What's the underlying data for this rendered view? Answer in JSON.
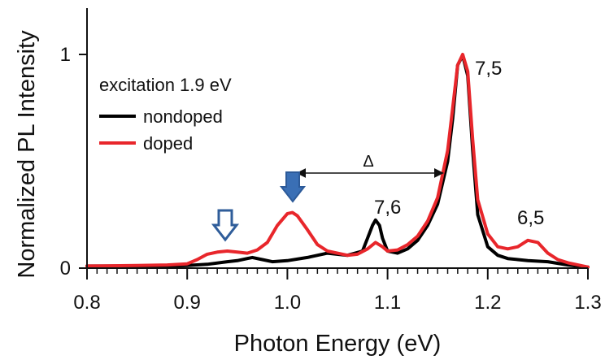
{
  "chart_data": {
    "type": "line",
    "xlabel": "Photon Energy (eV)",
    "ylabel": "Normalized PL Intensity",
    "xlim": [
      0.8,
      1.3
    ],
    "ylim": [
      0,
      1.2
    ],
    "x_ticks": [
      "0.8",
      "0.9",
      "1.0",
      "1.1",
      "1.2",
      "1.3"
    ],
    "y_ticks": [
      "0",
      "1"
    ],
    "grid": false,
    "legend": {
      "title": "excitation 1.9 eV",
      "placement": "top-left",
      "entries": [
        {
          "label": "nondoped",
          "color": "#000000"
        },
        {
          "label": "doped",
          "color": "#e8262b"
        }
      ]
    },
    "series": [
      {
        "name": "nondoped",
        "color": "#000000",
        "x": [
          0.8,
          0.85,
          0.88,
          0.9,
          0.92,
          0.94,
          0.95,
          0.96,
          0.965,
          0.975,
          0.985,
          1.0,
          1.02,
          1.04,
          1.06,
          1.075,
          1.08,
          1.085,
          1.088,
          1.092,
          1.095,
          1.1,
          1.11,
          1.12,
          1.13,
          1.14,
          1.15,
          1.16,
          1.165,
          1.17,
          1.175,
          1.18,
          1.185,
          1.19,
          1.2,
          1.21,
          1.22,
          1.23,
          1.24,
          1.26,
          1.28,
          1.3
        ],
        "y": [
          0.01,
          0.01,
          0.01,
          0.012,
          0.018,
          0.03,
          0.035,
          0.045,
          0.05,
          0.04,
          0.03,
          0.035,
          0.05,
          0.07,
          0.06,
          0.08,
          0.14,
          0.2,
          0.225,
          0.2,
          0.14,
          0.08,
          0.07,
          0.09,
          0.13,
          0.2,
          0.3,
          0.5,
          0.7,
          0.95,
          0.995,
          0.9,
          0.55,
          0.25,
          0.1,
          0.06,
          0.045,
          0.04,
          0.035,
          0.03,
          0.015,
          0.005
        ]
      },
      {
        "name": "doped",
        "color": "#e8262b",
        "x": [
          0.8,
          0.85,
          0.88,
          0.9,
          0.91,
          0.92,
          0.93,
          0.94,
          0.95,
          0.96,
          0.97,
          0.98,
          0.99,
          1.0,
          1.005,
          1.01,
          1.02,
          1.03,
          1.04,
          1.06,
          1.07,
          1.08,
          1.088,
          1.095,
          1.1,
          1.11,
          1.12,
          1.13,
          1.14,
          1.15,
          1.16,
          1.165,
          1.17,
          1.175,
          1.18,
          1.185,
          1.19,
          1.2,
          1.21,
          1.22,
          1.23,
          1.24,
          1.25,
          1.26,
          1.27,
          1.28,
          1.29,
          1.3
        ],
        "y": [
          0.01,
          0.012,
          0.015,
          0.02,
          0.04,
          0.065,
          0.075,
          0.08,
          0.075,
          0.07,
          0.085,
          0.12,
          0.2,
          0.255,
          0.26,
          0.245,
          0.18,
          0.11,
          0.08,
          0.06,
          0.065,
          0.09,
          0.12,
          0.1,
          0.08,
          0.085,
          0.11,
          0.15,
          0.22,
          0.33,
          0.55,
          0.75,
          0.95,
          1.0,
          0.92,
          0.6,
          0.32,
          0.16,
          0.1,
          0.09,
          0.1,
          0.13,
          0.12,
          0.07,
          0.04,
          0.025,
          0.015,
          0.005
        ]
      }
    ],
    "annotations": {
      "peaks": [
        {
          "label": "7,5",
          "x": 1.18,
          "y": 0.98
        },
        {
          "label": "7,6",
          "x": 1.09,
          "y": 0.27
        },
        {
          "label": "6,5",
          "x": 1.25,
          "y": 0.25
        }
      ],
      "delta": {
        "label": "Δ",
        "x_start": 1.01,
        "x_end": 1.155,
        "y": 0.445
      },
      "arrows": [
        {
          "type": "hollow",
          "x": 0.937,
          "y": 0.15
        },
        {
          "type": "filled",
          "x": 1.003,
          "y": 0.34
        }
      ]
    }
  }
}
